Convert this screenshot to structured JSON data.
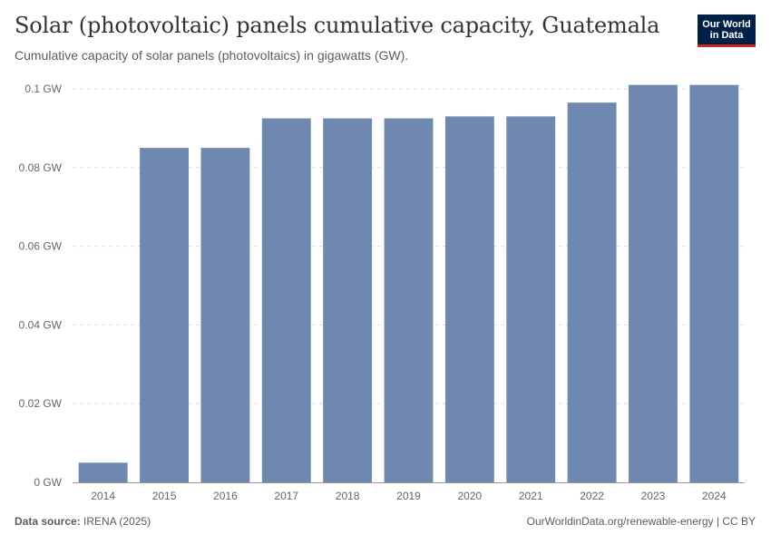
{
  "header": {
    "title": "Solar (photovoltaic) panels cumulative capacity, Guatemala",
    "subtitle": "Cumulative capacity of solar panels (photovoltaics) in gigawatts (GW).",
    "logo_line1": "Our World",
    "logo_line2": "in Data"
  },
  "footer": {
    "source_label": "Data source:",
    "source_value": "IRENA (2025)",
    "credit": "OurWorldinData.org/renewable-energy | CC BY"
  },
  "colors": {
    "bar": "#6e88b0",
    "grid": "#dddddd",
    "axis": "#999999"
  },
  "chart_data": {
    "type": "bar",
    "title": "Solar (photovoltaic) panels cumulative capacity, Guatemala",
    "xlabel": "",
    "ylabel": "",
    "categories": [
      "2014",
      "2015",
      "2016",
      "2017",
      "2018",
      "2019",
      "2020",
      "2021",
      "2022",
      "2023",
      "2024"
    ],
    "values": [
      0.005,
      0.085,
      0.085,
      0.0925,
      0.0925,
      0.0925,
      0.093,
      0.093,
      0.0965,
      0.101,
      0.101
    ],
    "ylim": [
      0,
      0.1
    ],
    "yticks": [
      0,
      0.02,
      0.04,
      0.06,
      0.08,
      0.1
    ],
    "ytick_labels": [
      "0 GW",
      "0.02 GW",
      "0.04 GW",
      "0.06 GW",
      "0.08 GW",
      "0.1 GW"
    ],
    "grid": true
  }
}
